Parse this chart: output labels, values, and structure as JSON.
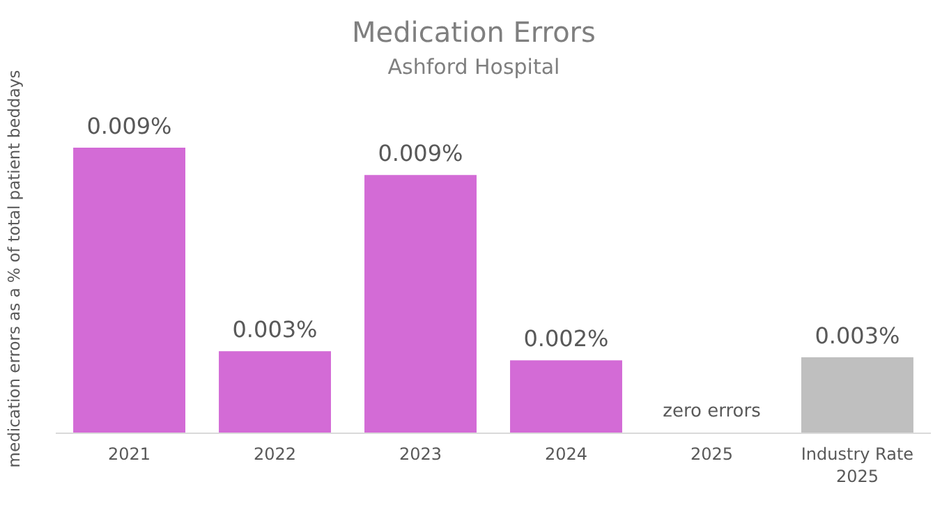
{
  "chart_data": {
    "type": "bar",
    "title": "Medication Errors",
    "subtitle": "Ashford Hospital",
    "ylabel": "medication errors as a % of total patient beddays",
    "categories": [
      "2021",
      "2022",
      "2023",
      "2024",
      "2025",
      "Industry Rate 2025"
    ],
    "values": [
      0.0094,
      0.0027,
      0.0085,
      0.0024,
      0,
      0.0025
    ],
    "colors": [
      "#d36bd6",
      "#d36bd6",
      "#d36bd6",
      "#d36bd6",
      "#d36bd6",
      "#bfbfbf"
    ],
    "value_labels": [
      "0.009%",
      "0.003%",
      "0.009%",
      "0.002%",
      "zero errors",
      "0.003%"
    ]
  }
}
